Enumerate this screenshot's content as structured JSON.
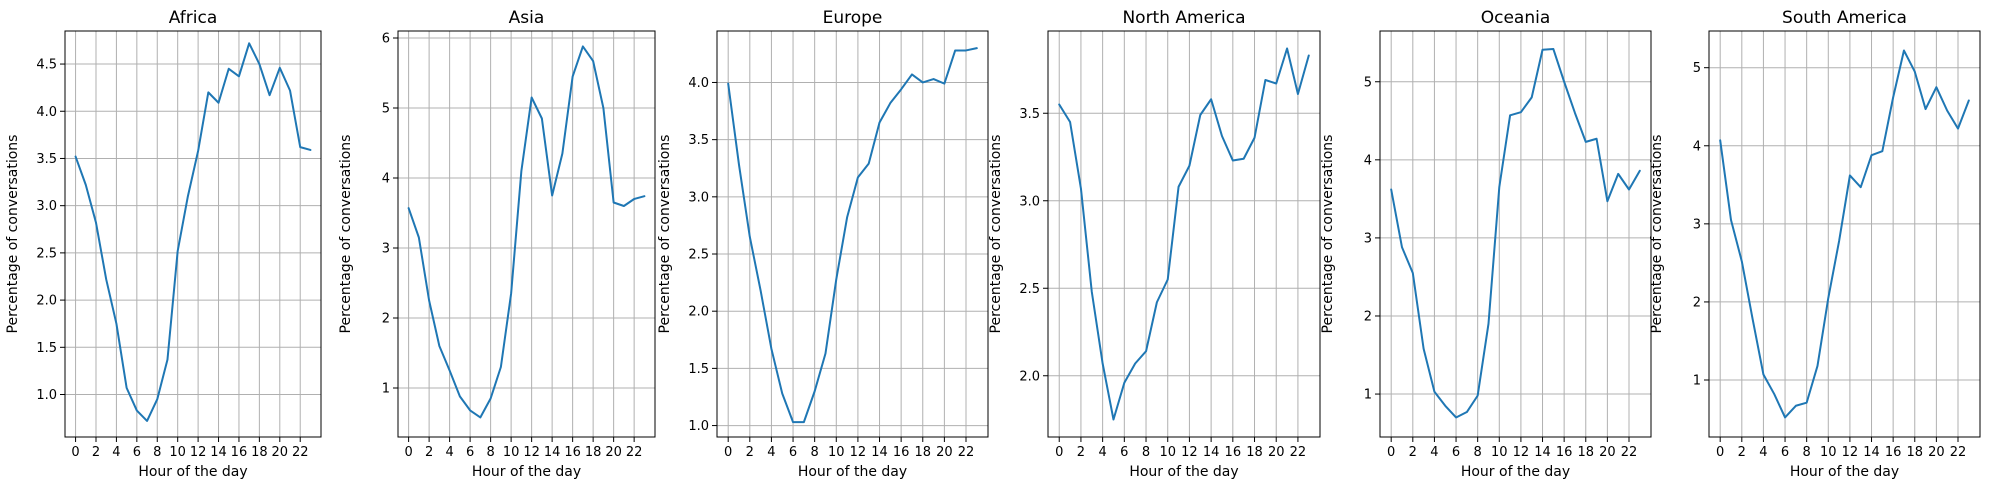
{
  "colors": {
    "line": "#1f77b4",
    "grid": "#b0b0b0",
    "axis": "#000000"
  },
  "chart_data": [
    {
      "type": "line",
      "title": "Africa",
      "xlabel": "Hour of the day",
      "ylabel": "Percentage of conversations",
      "grid": true,
      "x": [
        0,
        1,
        2,
        3,
        4,
        5,
        6,
        7,
        8,
        9,
        10,
        11,
        12,
        13,
        14,
        15,
        16,
        17,
        18,
        19,
        20,
        21,
        22,
        23
      ],
      "xticks": [
        "0",
        "2",
        "4",
        "6",
        "8",
        "10",
        "12",
        "14",
        "16",
        "18",
        "20",
        "22"
      ],
      "yticks": [
        "1.0",
        "1.5",
        "2.0",
        "2.5",
        "3.0",
        "3.5",
        "4.0",
        "4.5"
      ],
      "ylim": [
        0.55,
        4.85
      ],
      "values": [
        3.52,
        3.22,
        2.82,
        2.22,
        1.75,
        1.07,
        0.83,
        0.72,
        0.95,
        1.37,
        2.52,
        3.1,
        3.58,
        4.2,
        4.09,
        4.45,
        4.37,
        4.72,
        4.5,
        4.17,
        4.46,
        4.22,
        3.62,
        3.59
      ]
    },
    {
      "type": "line",
      "title": "Asia",
      "xlabel": "Hour of the day",
      "ylabel": "Percentage of conversations",
      "grid": true,
      "x": [
        0,
        1,
        2,
        3,
        4,
        5,
        6,
        7,
        8,
        9,
        10,
        11,
        12,
        13,
        14,
        15,
        16,
        17,
        18,
        19,
        20,
        21,
        22,
        23
      ],
      "xticks": [
        "0",
        "2",
        "4",
        "6",
        "8",
        "10",
        "12",
        "14",
        "16",
        "18",
        "20",
        "22"
      ],
      "yticks": [
        "1",
        "2",
        "3",
        "4",
        "5",
        "6"
      ],
      "ylim": [
        0.3,
        6.1
      ],
      "values": [
        3.57,
        3.15,
        2.25,
        1.6,
        1.25,
        0.88,
        0.68,
        0.58,
        0.85,
        1.3,
        2.35,
        4.1,
        5.15,
        4.85,
        3.75,
        4.35,
        5.45,
        5.88,
        5.67,
        5.0,
        3.65,
        3.6,
        3.7,
        3.74
      ]
    },
    {
      "type": "line",
      "title": "Europe",
      "xlabel": "Hour of the day",
      "ylabel": "Percentage of conversations",
      "grid": true,
      "x": [
        0,
        1,
        2,
        3,
        4,
        5,
        6,
        7,
        8,
        9,
        10,
        11,
        12,
        13,
        14,
        15,
        16,
        17,
        18,
        19,
        20,
        21,
        22,
        23
      ],
      "xticks": [
        "0",
        "2",
        "4",
        "6",
        "8",
        "10",
        "12",
        "14",
        "16",
        "18",
        "20",
        "22"
      ],
      "yticks": [
        "1.0",
        "1.5",
        "2.0",
        "2.5",
        "3.0",
        "3.5",
        "4.0"
      ],
      "ylim": [
        0.9,
        4.45
      ],
      "values": [
        3.99,
        3.28,
        2.65,
        2.18,
        1.67,
        1.28,
        1.03,
        1.03,
        1.3,
        1.63,
        2.28,
        2.82,
        3.17,
        3.29,
        3.65,
        3.82,
        3.94,
        4.07,
        4.0,
        4.03,
        3.99,
        4.28,
        4.28,
        4.3
      ]
    },
    {
      "type": "line",
      "title": "North America",
      "xlabel": "Hour of the day",
      "ylabel": "Percentage of conversations",
      "grid": true,
      "x": [
        0,
        1,
        2,
        3,
        4,
        5,
        6,
        7,
        8,
        9,
        10,
        11,
        12,
        13,
        14,
        15,
        16,
        17,
        18,
        19,
        20,
        21,
        22,
        23
      ],
      "xticks": [
        "0",
        "2",
        "4",
        "6",
        "8",
        "10",
        "12",
        "14",
        "16",
        "18",
        "20",
        "22"
      ],
      "yticks": [
        "2.0",
        "2.5",
        "3.0",
        "3.5"
      ],
      "ylim": [
        1.65,
        3.97
      ],
      "values": [
        3.55,
        3.45,
        3.07,
        2.48,
        2.07,
        1.75,
        1.96,
        2.07,
        2.14,
        2.42,
        2.55,
        3.08,
        3.2,
        3.49,
        3.58,
        3.37,
        3.23,
        3.24,
        3.36,
        3.69,
        3.67,
        3.87,
        3.61,
        3.83
      ]
    },
    {
      "type": "line",
      "title": "Oceania",
      "xlabel": "Hour of the day",
      "ylabel": "Percentage of conversations",
      "grid": true,
      "x": [
        0,
        1,
        2,
        3,
        4,
        5,
        6,
        7,
        8,
        9,
        10,
        11,
        12,
        13,
        14,
        15,
        16,
        17,
        18,
        19,
        20,
        21,
        22,
        23
      ],
      "xticks": [
        "0",
        "2",
        "4",
        "6",
        "8",
        "10",
        "12",
        "14",
        "16",
        "18",
        "20",
        "22"
      ],
      "yticks": [
        "1",
        "2",
        "3",
        "4",
        "5"
      ],
      "ylim": [
        0.45,
        5.65
      ],
      "values": [
        3.62,
        2.88,
        2.55,
        1.58,
        1.03,
        0.85,
        0.7,
        0.77,
        0.98,
        1.9,
        3.65,
        4.57,
        4.61,
        4.8,
        5.41,
        5.42,
        5.0,
        4.6,
        4.23,
        4.27,
        3.47,
        3.82,
        3.62,
        3.86
      ]
    },
    {
      "type": "line",
      "title": "South America",
      "xlabel": "Hour of the day",
      "ylabel": "Percentage of conversations",
      "grid": true,
      "x": [
        0,
        1,
        2,
        3,
        4,
        5,
        6,
        7,
        8,
        9,
        10,
        11,
        12,
        13,
        14,
        15,
        16,
        17,
        18,
        19,
        20,
        21,
        22,
        23
      ],
      "xticks": [
        "0",
        "2",
        "4",
        "6",
        "8",
        "10",
        "12",
        "14",
        "16",
        "18",
        "20",
        "22"
      ],
      "yticks": [
        "1",
        "2",
        "3",
        "4",
        "5"
      ],
      "ylim": [
        0.27,
        5.47
      ],
      "values": [
        4.07,
        3.05,
        2.52,
        1.78,
        1.07,
        0.82,
        0.52,
        0.67,
        0.71,
        1.18,
        2.05,
        2.78,
        3.62,
        3.47,
        3.88,
        3.93,
        4.62,
        5.22,
        4.95,
        4.47,
        4.75,
        4.45,
        4.22,
        4.58
      ]
    }
  ]
}
